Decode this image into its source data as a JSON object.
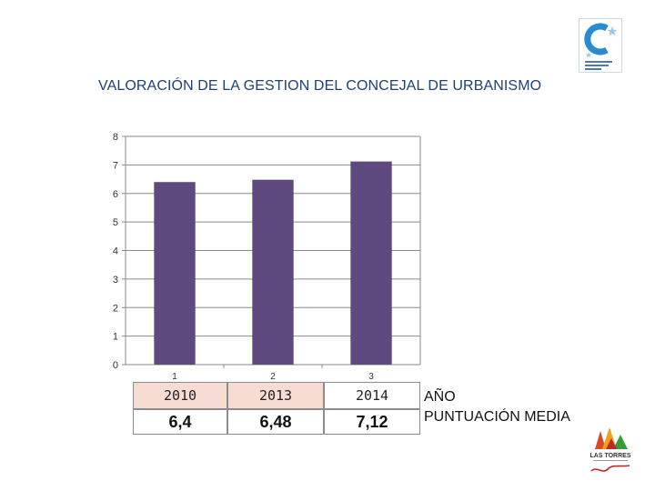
{
  "header": {
    "logo_name": "coalition-logo"
  },
  "chart_data": {
    "type": "bar",
    "title": "VALORACIÓN DE LA GESTION DEL CONCEJAL DE URBANISMO",
    "categories": [
      "1",
      "2",
      "3"
    ],
    "values": [
      6.4,
      6.48,
      7.12
    ],
    "ylim": [
      0,
      8
    ],
    "yticks": [
      "0",
      "1",
      "2",
      "3",
      "4",
      "5",
      "6",
      "7",
      "8"
    ],
    "grid": true,
    "bar_color": "#5e4a7e",
    "xlabel": "",
    "ylabel": ""
  },
  "table": {
    "year_label": "AÑO",
    "value_label": "PUNTUACIÓN MEDIA",
    "years": [
      "2010",
      "2013",
      "2014"
    ],
    "scores": [
      "6,4",
      "6,48",
      "7,12"
    ]
  },
  "footer": {
    "logo_name": "las-torres-logo",
    "logo_text": "LAS TORRES"
  }
}
